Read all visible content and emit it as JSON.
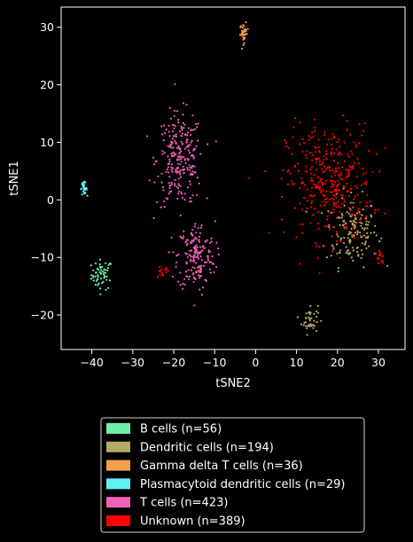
{
  "chart_data": {
    "type": "scatter",
    "title": "",
    "xlabel": "tSNE2",
    "ylabel": "tSNE1",
    "xlim": [
      -47.5,
      36.5
    ],
    "ylim": [
      -26,
      33.5
    ],
    "xticks": [
      -40,
      -30,
      -20,
      -10,
      0,
      10,
      20,
      30
    ],
    "yticks": [
      -20,
      -10,
      0,
      10,
      20,
      30
    ],
    "grid": false,
    "legend_position": "bottom-center",
    "series": [
      {
        "name": "B cells (n=56)",
        "color": "#6ff0a8",
        "clusters": [
          {
            "n": 56,
            "center": [
              -37.5,
              -13.0
            ],
            "spread": [
              1.3,
              1.3
            ]
          }
        ]
      },
      {
        "name": "Dendritic cells (n=194)",
        "color": "#b5aa66",
        "clusters": [
          {
            "n": 152,
            "center": [
              23.5,
              -5.5
            ],
            "spread": [
              3.2,
              3.0
            ]
          },
          {
            "n": 42,
            "center": [
              13.2,
              -20.7
            ],
            "spread": [
              1.0,
              1.3
            ]
          }
        ]
      },
      {
        "name": "Gamma delta T cells (n=36)",
        "color": "#f5a04a",
        "clusters": [
          {
            "n": 36,
            "center": [
              -2.8,
              29.0
            ],
            "spread": [
              0.5,
              0.8
            ]
          }
        ]
      },
      {
        "name": "Plasmacytoid dendritic cells (n=29)",
        "color": "#5ff0f5",
        "clusters": [
          {
            "n": 29,
            "center": [
              -42.0,
              2.0
            ],
            "spread": [
              0.4,
              0.5
            ]
          }
        ]
      },
      {
        "name": "T cells (n=423)",
        "color": "#f060b8",
        "clusters": [
          {
            "n": 245,
            "center": [
              -18.5,
              7.0
            ],
            "spread": [
              2.8,
              4.0
            ]
          },
          {
            "n": 178,
            "center": [
              -14.5,
              -9.8
            ],
            "spread": [
              2.3,
              3.0
            ]
          }
        ]
      },
      {
        "name": "Unknown (n=389)",
        "color": "#ff0000",
        "clusters": [
          {
            "n": 360,
            "center": [
              18.0,
              3.0
            ],
            "spread": [
              5.2,
              5.0
            ]
          },
          {
            "n": 14,
            "center": [
              -23.0,
              -12.5
            ],
            "spread": [
              1.0,
              0.4
            ]
          },
          {
            "n": 15,
            "center": [
              30.5,
              -10.0
            ],
            "spread": [
              0.6,
              0.6
            ]
          }
        ]
      }
    ]
  }
}
